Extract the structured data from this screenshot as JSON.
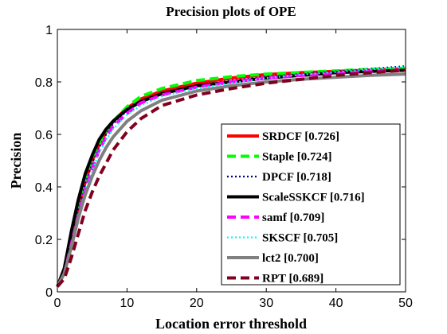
{
  "chart_data": {
    "type": "line",
    "title": "Precision plots of OPE",
    "xlabel": "Location error threshold",
    "ylabel": "Precision",
    "xlim": [
      0,
      50
    ],
    "ylim": [
      0,
      1
    ],
    "xticks": [
      0,
      10,
      20,
      30,
      40,
      50
    ],
    "yticks": [
      0,
      0.2,
      0.4,
      0.6,
      0.8,
      1
    ],
    "xtick_labels": [
      "0",
      "10",
      "20",
      "30",
      "40",
      "50"
    ],
    "ytick_labels": [
      "0",
      "0.2",
      "0.4",
      "0.6",
      "0.8",
      "1"
    ],
    "grid": false,
    "legend_position": "bottom-right",
    "series": [
      {
        "name": "SRDCF [0.726]",
        "color": "#ff0000",
        "style": "solid",
        "x": [
          0,
          1,
          2,
          3,
          4,
          5,
          6,
          7,
          8,
          10,
          12,
          15,
          20,
          25,
          30,
          35,
          40,
          45,
          50
        ],
        "y": [
          0.02,
          0.08,
          0.2,
          0.32,
          0.42,
          0.5,
          0.56,
          0.61,
          0.65,
          0.7,
          0.735,
          0.765,
          0.795,
          0.815,
          0.828,
          0.835,
          0.84,
          0.845,
          0.85
        ]
      },
      {
        "name": "Staple [0.724]",
        "color": "#00ff00",
        "style": "dashed",
        "x": [
          0,
          1,
          2,
          3,
          4,
          5,
          6,
          7,
          8,
          10,
          12,
          15,
          20,
          25,
          30,
          35,
          40,
          45,
          50
        ],
        "y": [
          0.02,
          0.08,
          0.19,
          0.31,
          0.41,
          0.49,
          0.56,
          0.61,
          0.65,
          0.705,
          0.745,
          0.775,
          0.805,
          0.82,
          0.83,
          0.836,
          0.842,
          0.848,
          0.852
        ]
      },
      {
        "name": "DPCF [0.718]",
        "color": "#00008b",
        "style": "dotted",
        "x": [
          0,
          1,
          2,
          3,
          4,
          5,
          6,
          7,
          8,
          10,
          12,
          15,
          20,
          25,
          30,
          35,
          40,
          45,
          50
        ],
        "y": [
          0.02,
          0.08,
          0.2,
          0.31,
          0.41,
          0.49,
          0.55,
          0.6,
          0.64,
          0.69,
          0.725,
          0.755,
          0.785,
          0.805,
          0.82,
          0.83,
          0.84,
          0.85,
          0.86
        ]
      },
      {
        "name": "ScaleSSKCF [0.716]",
        "color": "#000000",
        "style": "solid",
        "x": [
          0,
          1,
          2,
          3,
          4,
          5,
          6,
          7,
          8,
          10,
          12,
          15,
          20,
          25,
          30,
          35,
          40,
          45,
          50
        ],
        "y": [
          0.02,
          0.09,
          0.23,
          0.35,
          0.45,
          0.52,
          0.58,
          0.62,
          0.65,
          0.695,
          0.725,
          0.755,
          0.785,
          0.8,
          0.815,
          0.825,
          0.835,
          0.84,
          0.845
        ]
      },
      {
        "name": "samf [0.709]",
        "color": "#ff00ff",
        "style": "dashed",
        "x": [
          0,
          1,
          2,
          3,
          4,
          5,
          6,
          7,
          8,
          10,
          12,
          15,
          20,
          25,
          30,
          35,
          40,
          45,
          50
        ],
        "y": [
          0.02,
          0.07,
          0.18,
          0.29,
          0.39,
          0.47,
          0.54,
          0.59,
          0.63,
          0.68,
          0.72,
          0.75,
          0.78,
          0.8,
          0.815,
          0.825,
          0.833,
          0.84,
          0.845
        ]
      },
      {
        "name": "SKSCF [0.705]",
        "color": "#00ffff",
        "style": "dotted",
        "x": [
          0,
          1,
          2,
          3,
          4,
          5,
          6,
          7,
          8,
          10,
          12,
          15,
          20,
          25,
          30,
          35,
          40,
          45,
          50
        ],
        "y": [
          0.02,
          0.07,
          0.18,
          0.29,
          0.38,
          0.46,
          0.53,
          0.58,
          0.62,
          0.675,
          0.71,
          0.745,
          0.775,
          0.795,
          0.815,
          0.828,
          0.838,
          0.848,
          0.858
        ]
      },
      {
        "name": "lct2 [0.700]",
        "color": "#808080",
        "style": "solid",
        "x": [
          0,
          1,
          2,
          3,
          4,
          5,
          6,
          7,
          8,
          10,
          12,
          15,
          20,
          25,
          30,
          35,
          40,
          45,
          50
        ],
        "y": [
          0.02,
          0.07,
          0.17,
          0.28,
          0.37,
          0.44,
          0.5,
          0.55,
          0.59,
          0.65,
          0.69,
          0.73,
          0.765,
          0.785,
          0.8,
          0.81,
          0.818,
          0.825,
          0.83
        ]
      },
      {
        "name": "RPT [0.689]",
        "color": "#800020",
        "style": "dashed",
        "x": [
          0,
          1,
          2,
          3,
          4,
          5,
          6,
          7,
          8,
          10,
          12,
          15,
          20,
          25,
          30,
          35,
          40,
          45,
          50
        ],
        "y": [
          0.02,
          0.05,
          0.13,
          0.22,
          0.31,
          0.38,
          0.44,
          0.49,
          0.54,
          0.61,
          0.66,
          0.71,
          0.75,
          0.775,
          0.795,
          0.81,
          0.825,
          0.835,
          0.845
        ]
      }
    ]
  }
}
